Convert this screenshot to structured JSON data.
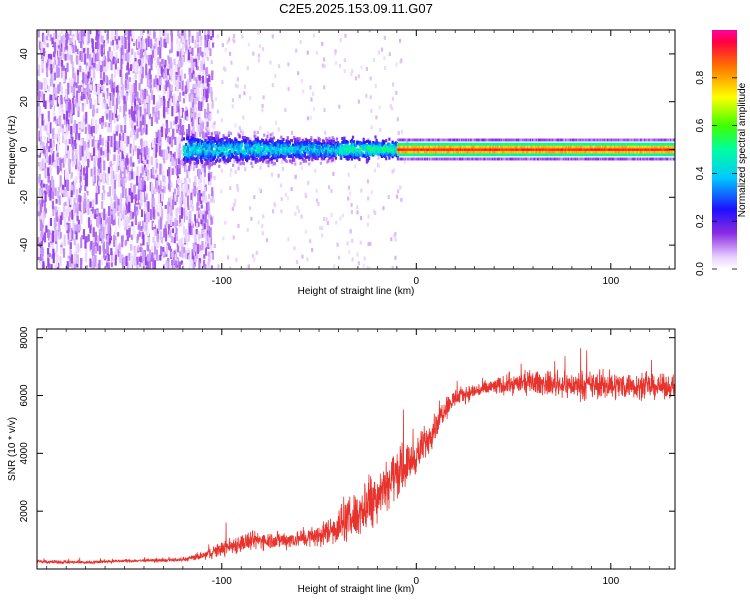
{
  "title": "C2E5.2025.153.09.11.G07",
  "chart_data": [
    {
      "type": "heatmap",
      "panel": "top",
      "xlabel": "Height of straight line (km)",
      "ylabel": "Frequency (Hz)",
      "xlim": [
        -195,
        133
      ],
      "ylim": [
        -50,
        50
      ],
      "xticks": [
        -100,
        0,
        100
      ],
      "yticks": [
        -40,
        -20,
        0,
        20,
        40
      ],
      "colorbar": {
        "label": "Normalized spectral amplitude",
        "range": [
          0,
          1
        ],
        "ticks": [
          0.0,
          0.2,
          0.4,
          0.6,
          0.8
        ],
        "colormap": "rainbow (violet to red)"
      },
      "regions": [
        {
          "description": "diffuse noise",
          "x": [
            -195,
            -105
          ],
          "freq": [
            -50,
            50
          ],
          "amplitude": [
            0.02,
            0.12
          ]
        },
        {
          "description": "sparse noise",
          "x": [
            -120,
            -5
          ],
          "freq": [
            -50,
            50
          ],
          "amplitude": [
            0.0,
            0.05
          ]
        },
        {
          "description": "broadened carrier",
          "x": [
            -120,
            -10
          ],
          "freq": [
            -12,
            12
          ],
          "amplitude": [
            0.05,
            0.4
          ]
        },
        {
          "description": "narrow carrier",
          "x": [
            -10,
            133
          ],
          "freq": [
            -3,
            3
          ],
          "amplitude": [
            0.6,
            1.0
          ]
        }
      ]
    },
    {
      "type": "line",
      "panel": "bottom",
      "xlabel": "Height of straight line (km)",
      "ylabel": "SNR (10 * v/v)",
      "xlim": [
        -195,
        133
      ],
      "ylim": [
        0,
        8300
      ],
      "xticks": [
        -100,
        0,
        100
      ],
      "yticks": [
        2000,
        4000,
        6000,
        8000
      ],
      "color": "#e8322c",
      "series": [
        {
          "name": "SNR",
          "x": [
            -195,
            -170,
            -150,
            -130,
            -120,
            -110,
            -100,
            -90,
            -80,
            -70,
            -60,
            -50,
            -40,
            -30,
            -25,
            -20,
            -15,
            -10,
            -5,
            0,
            5,
            10,
            15,
            20,
            25,
            30,
            40,
            50,
            60,
            70,
            80,
            90,
            100,
            110,
            120,
            133
          ],
          "y": [
            250,
            230,
            280,
            300,
            320,
            450,
            700,
            900,
            1000,
            1000,
            1050,
            1150,
            1500,
            1900,
            2300,
            2600,
            3000,
            3300,
            3600,
            3900,
            4400,
            5000,
            5600,
            5900,
            6050,
            6150,
            6300,
            6400,
            6450,
            6400,
            6350,
            6350,
            6350,
            6350,
            6300,
            6300
          ],
          "noise_amplitude": [
            80,
            80,
            80,
            80,
            100,
            200,
            400,
            500,
            450,
            450,
            450,
            550,
            900,
            1200,
            1500,
            1300,
            1300,
            1200,
            1000,
            900,
            900,
            700,
            600,
            500,
            400,
            400,
            450,
            500,
            600,
            600,
            650,
            700,
            700,
            650,
            600,
            550
          ]
        }
      ]
    }
  ]
}
